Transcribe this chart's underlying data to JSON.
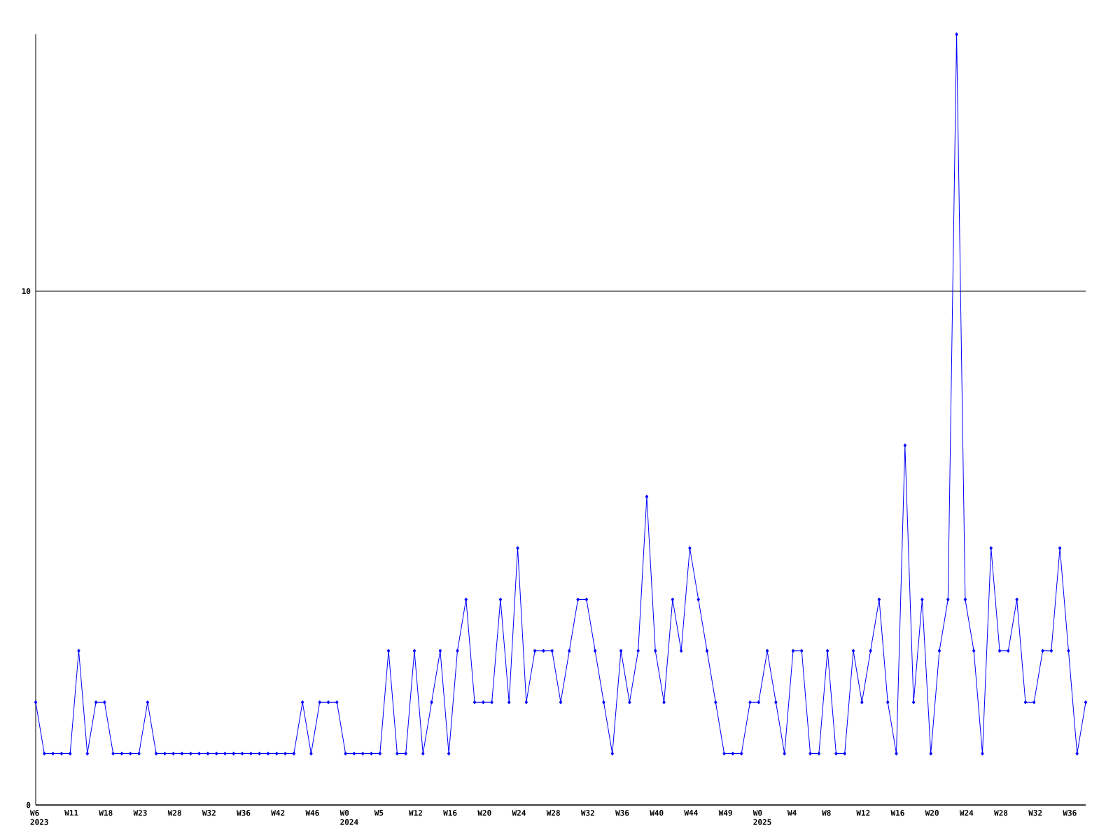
{
  "chart_data": {
    "type": "line",
    "categories": [
      "W6 2023",
      null,
      null,
      null,
      "W11",
      null,
      null,
      null,
      "W18",
      null,
      null,
      null,
      "W23",
      null,
      null,
      null,
      "W28",
      null,
      null,
      null,
      "W32",
      null,
      null,
      null,
      "W36",
      null,
      null,
      null,
      "W42",
      null,
      null,
      null,
      "W46",
      null,
      null,
      null,
      "W0 2024",
      null,
      null,
      null,
      "W5",
      null,
      null,
      null,
      "W12",
      null,
      null,
      null,
      "W16",
      null,
      null,
      null,
      "W20",
      null,
      null,
      null,
      "W24",
      null,
      null,
      null,
      "W28",
      null,
      null,
      null,
      "W32",
      null,
      null,
      null,
      "W36",
      null,
      null,
      null,
      "W40",
      null,
      null,
      null,
      "W44",
      null,
      null,
      null,
      "W49",
      null,
      null,
      null,
      "W0 2025",
      null,
      null,
      null,
      "W4",
      null,
      null,
      null,
      "W8",
      null,
      null,
      null,
      "W12",
      null,
      null,
      null,
      "W16",
      null,
      null,
      null,
      "W20",
      null,
      null,
      null,
      "W24",
      null,
      null,
      null,
      "W28",
      null,
      null,
      null,
      "W32",
      null,
      null,
      null,
      "W36",
      null,
      null
    ],
    "series": [
      {
        "color": "#0000ff",
        "values": [
          2,
          1,
          1,
          1,
          1,
          3,
          1,
          2,
          2,
          1,
          1,
          1,
          1,
          2,
          1,
          1,
          1,
          1,
          1,
          1,
          1,
          1,
          1,
          1,
          1,
          1,
          1,
          1,
          1,
          1,
          1,
          2,
          1,
          2,
          2,
          2,
          1,
          1,
          1,
          1,
          1,
          3,
          1,
          1,
          3,
          1,
          2,
          3,
          1,
          3,
          4,
          2,
          2,
          2,
          4,
          2,
          5,
          2,
          3,
          3,
          3,
          2,
          3,
          4,
          4,
          3,
          2,
          1,
          3,
          2,
          3,
          6,
          3,
          2,
          4,
          3,
          5,
          4,
          3,
          2,
          1,
          1,
          1,
          2,
          2,
          3,
          2,
          1,
          3,
          3,
          1,
          1,
          3,
          1,
          1,
          3,
          2,
          3,
          4,
          2,
          1,
          7,
          2,
          4,
          1,
          3,
          4,
          15,
          4,
          3,
          1,
          5,
          3,
          3,
          4,
          2,
          2,
          3,
          3,
          5,
          3,
          1,
          2
        ]
      }
    ],
    "ylim": [
      0,
      15
    ],
    "yticks": [
      0,
      10
    ],
    "grid": "y",
    "marker": "diamond",
    "line_style": "solid"
  }
}
